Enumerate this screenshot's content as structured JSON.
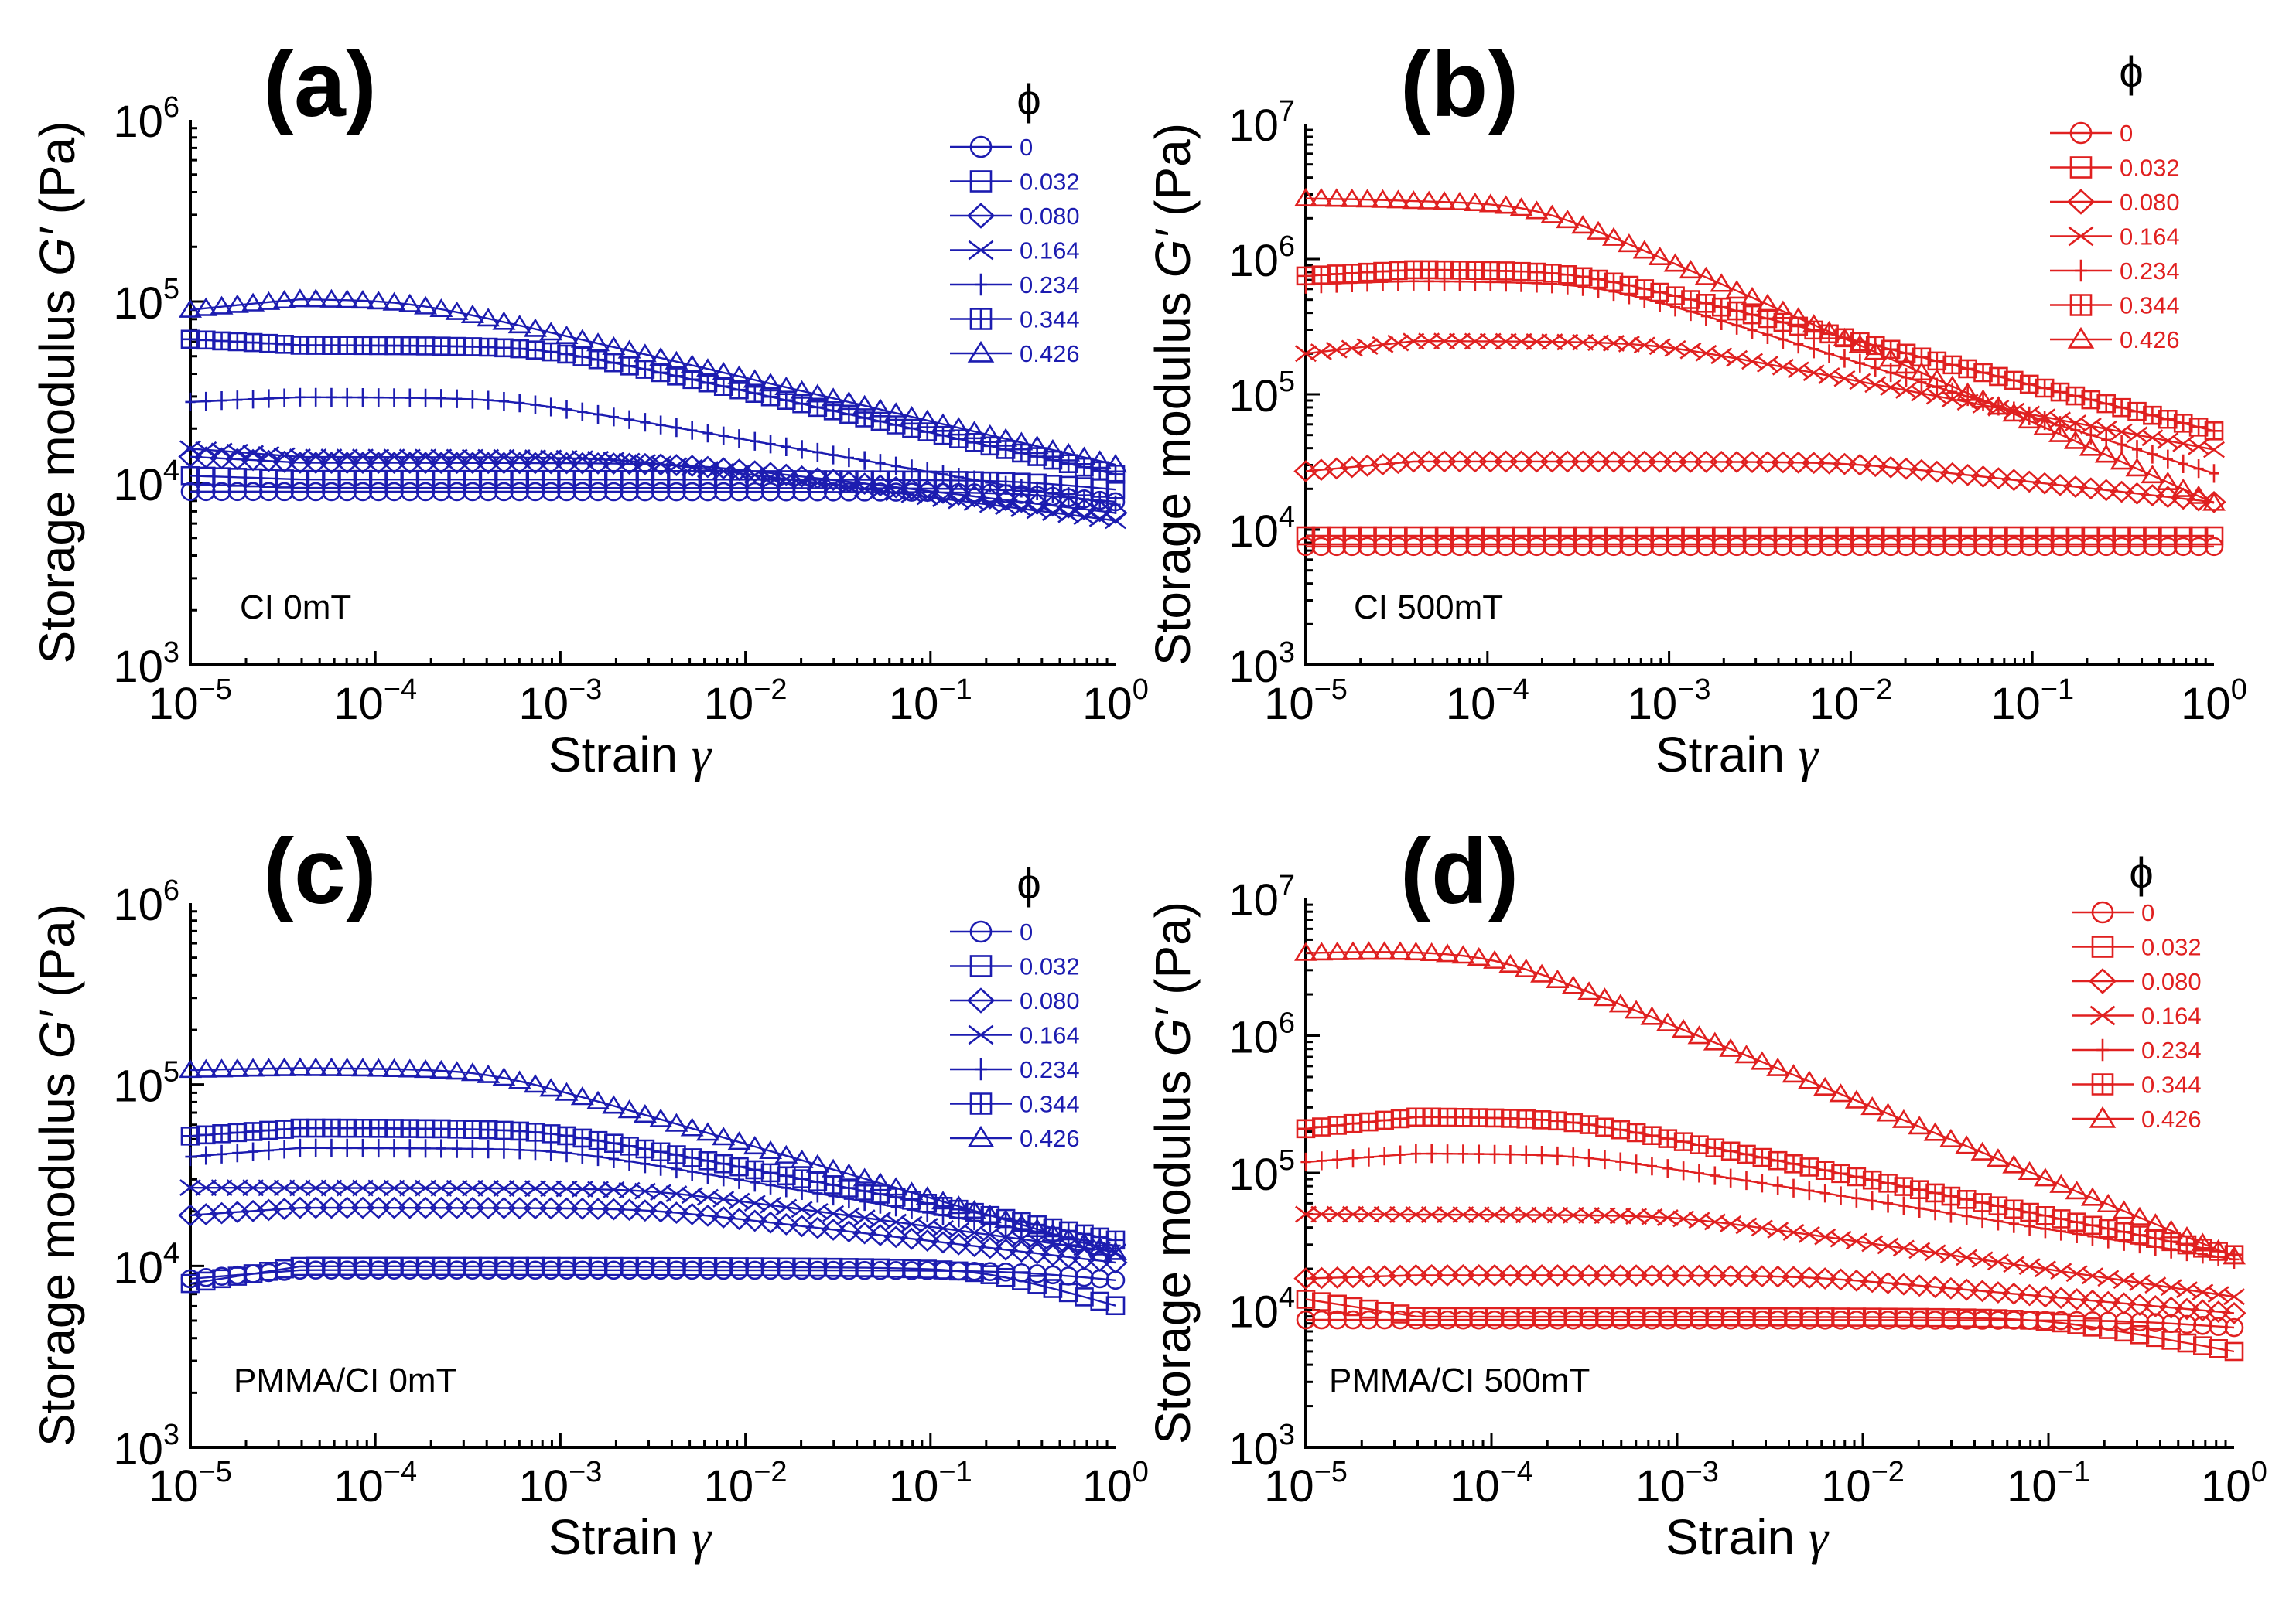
{
  "colors": {
    "blue": "#1c1cb0",
    "red": "#e02020"
  },
  "legend_title": "ϕ",
  "chart_data": [
    {
      "type": "line",
      "panel_label": "(a)",
      "annotation": "CI  0mT",
      "color": "#1c1cb0",
      "xlabel": "Strain",
      "xlabel_symbol": "γ",
      "ylabel": "Storage modulus",
      "ylabel_symbol": "G′",
      "ylabel_unit": "(Pa)",
      "xscale": "log",
      "yscale": "log",
      "xlim": [
        1e-05,
        1
      ],
      "ylim": [
        1000,
        1000000
      ],
      "xticks": [
        {
          "base": "10",
          "exp": "-5",
          "value": 1e-05
        },
        {
          "base": "10",
          "exp": "-4",
          "value": 0.0001
        },
        {
          "base": "10",
          "exp": "-3",
          "value": 0.001
        },
        {
          "base": "10",
          "exp": "-2",
          "value": 0.01
        },
        {
          "base": "10",
          "exp": "-1",
          "value": 0.1
        },
        {
          "base": "10",
          "exp": "0",
          "value": 1
        }
      ],
      "yticks": [
        {
          "base": "10",
          "exp": "3",
          "value": 1000
        },
        {
          "base": "10",
          "exp": "4",
          "value": 10000
        },
        {
          "base": "10",
          "exp": "5",
          "value": 100000
        },
        {
          "base": "10",
          "exp": "6",
          "value": 1000000
        }
      ],
      "legend_position": "top-right",
      "series": [
        {
          "name": "0",
          "marker": "circle",
          "plateau": 9000,
          "rise": 0,
          "transition": 0.3,
          "slope": 0.1,
          "start": 9000
        },
        {
          "name": "0.032",
          "marker": "square",
          "plateau": 10500,
          "rise": 0,
          "transition": 0.3,
          "slope": 0.1,
          "start": 11000
        },
        {
          "name": "0.080",
          "marker": "diamond",
          "plateau": 13000,
          "rise": 0,
          "transition": 0.005,
          "slope": 0.12,
          "start": 14000
        },
        {
          "name": "0.164",
          "marker": "x",
          "plateau": 14000,
          "rise": 0,
          "transition": 0.002,
          "slope": 0.13,
          "start": 15500
        },
        {
          "name": "0.234",
          "marker": "plus",
          "plateau": 30000,
          "rise": 0,
          "transition": 0.0005,
          "slope": 0.18,
          "start": 28000
        },
        {
          "name": "0.344",
          "marker": "boxplus",
          "plateau": 58000,
          "rise": 0,
          "transition": 0.0008,
          "slope": 0.23,
          "start": 62000
        },
        {
          "name": "0.426",
          "marker": "triangle",
          "plateau": 105000,
          "rise": 0,
          "transition": 0.00015,
          "slope": 0.24,
          "start": 90000
        }
      ]
    },
    {
      "type": "line",
      "panel_label": "(b)",
      "annotation": "CI  500mT",
      "color": "#e02020",
      "xlabel": "Strain",
      "xlabel_symbol": "γ",
      "ylabel": "Storage modulus",
      "ylabel_symbol": "G′",
      "ylabel_unit": "(Pa)",
      "xscale": "log",
      "yscale": "log",
      "xlim": [
        1e-05,
        1
      ],
      "ylim": [
        1000,
        10000000
      ],
      "xticks": [
        {
          "base": "10",
          "exp": "-5",
          "value": 1e-05
        },
        {
          "base": "10",
          "exp": "-4",
          "value": 0.0001
        },
        {
          "base": "10",
          "exp": "-3",
          "value": 0.001
        },
        {
          "base": "10",
          "exp": "-2",
          "value": 0.01
        },
        {
          "base": "10",
          "exp": "-1",
          "value": 0.1
        },
        {
          "base": "10",
          "exp": "0",
          "value": 1
        }
      ],
      "yticks": [
        {
          "base": "10",
          "exp": "3",
          "value": 1000
        },
        {
          "base": "10",
          "exp": "4",
          "value": 10000
        },
        {
          "base": "10",
          "exp": "5",
          "value": 100000
        },
        {
          "base": "10",
          "exp": "6",
          "value": 1000000
        },
        {
          "base": "10",
          "exp": "7",
          "value": 10000000
        }
      ],
      "legend_position": "top-right",
      "series": [
        {
          "name": "0",
          "marker": "circle",
          "plateau": 7500,
          "rise": 0,
          "transition": 1,
          "slope": 0,
          "start": 7500
        },
        {
          "name": "0.032",
          "marker": "square",
          "plateau": 9000,
          "rise": 0,
          "transition": 1,
          "slope": 0,
          "start": 9000
        },
        {
          "name": "0.080",
          "marker": "diamond",
          "plateau": 32000,
          "rise": 0,
          "transition": 0.01,
          "slope": 0.15,
          "start": 27000
        },
        {
          "name": "0.164",
          "marker": "x",
          "plateau": 250000,
          "rise": 0,
          "transition": 0.0008,
          "slope": 0.26,
          "start": 200000
        },
        {
          "name": "0.234",
          "marker": "plus",
          "plateau": 700000,
          "rise": 0,
          "transition": 0.0004,
          "slope": 0.42,
          "start": 650000
        },
        {
          "name": "0.344",
          "marker": "boxplus",
          "plateau": 850000,
          "rise": 0,
          "transition": 0.0003,
          "slope": 0.34,
          "start": 750000
        },
        {
          "name": "0.426",
          "marker": "triangle",
          "plateau": 2800000,
          "rise": 0,
          "transition": 0.00018,
          "slope": 0.6,
          "start": 2800000
        }
      ]
    },
    {
      "type": "line",
      "panel_label": "(c)",
      "annotation": "PMMA/CI  0mT",
      "color": "#1c1cb0",
      "xlabel": "Strain",
      "xlabel_symbol": "γ",
      "ylabel": "Storage modulus",
      "ylabel_symbol": "G′",
      "ylabel_unit": "(Pa)",
      "xscale": "log",
      "yscale": "log",
      "xlim": [
        1e-05,
        1
      ],
      "ylim": [
        1000,
        1000000
      ],
      "xticks": [
        {
          "base": "10",
          "exp": "-5",
          "value": 1e-05
        },
        {
          "base": "10",
          "exp": "-4",
          "value": 0.0001
        },
        {
          "base": "10",
          "exp": "-3",
          "value": 0.001
        },
        {
          "base": "10",
          "exp": "-2",
          "value": 0.01
        },
        {
          "base": "10",
          "exp": "-1",
          "value": 0.1
        },
        {
          "base": "10",
          "exp": "0",
          "value": 1
        }
      ],
      "yticks": [
        {
          "base": "10",
          "exp": "3",
          "value": 1000
        },
        {
          "base": "10",
          "exp": "4",
          "value": 10000
        },
        {
          "base": "10",
          "exp": "5",
          "value": 100000
        },
        {
          "base": "10",
          "exp": "6",
          "value": 1000000
        }
      ],
      "legend_position": "top-right",
      "series": [
        {
          "name": "0",
          "marker": "circle",
          "plateau": 9500,
          "rise": 0,
          "transition": 0.3,
          "slope": 0.1,
          "start": 8500
        },
        {
          "name": "0.032",
          "marker": "square",
          "plateau": 10000,
          "rise": 0,
          "transition": 0.2,
          "slope": 0.3,
          "start": 8000
        },
        {
          "name": "0.080",
          "marker": "diamond",
          "plateau": 21000,
          "rise": 0,
          "transition": 0.003,
          "slope": 0.12,
          "start": 19000
        },
        {
          "name": "0.164",
          "marker": "x",
          "plateau": 27000,
          "rise": 0,
          "transition": 0.003,
          "slope": 0.14,
          "start": 27000
        },
        {
          "name": "0.234",
          "marker": "plus",
          "plateau": 45000,
          "rise": 0,
          "transition": 0.001,
          "slope": 0.18,
          "start": 40000
        },
        {
          "name": "0.344",
          "marker": "boxplus",
          "plateau": 58000,
          "rise": 0,
          "transition": 0.0008,
          "slope": 0.2,
          "start": 52000
        },
        {
          "name": "0.426",
          "marker": "triangle",
          "plateau": 125000,
          "rise": 0,
          "transition": 0.0004,
          "slope": 0.3,
          "start": 120000
        }
      ]
    },
    {
      "type": "line",
      "panel_label": "(d)",
      "annotation": "PMMA/CI  500mT",
      "color": "#e02020",
      "xlabel": "Strain",
      "xlabel_symbol": "γ",
      "ylabel": "Storage modulus",
      "ylabel_symbol": "G′",
      "ylabel_unit": "(Pa)",
      "xscale": "log",
      "yscale": "log",
      "xlim": [
        1e-05,
        1
      ],
      "ylim": [
        1000,
        10000000
      ],
      "xticks": [
        {
          "base": "10",
          "exp": "-5",
          "value": 1e-05
        },
        {
          "base": "10",
          "exp": "-4",
          "value": 0.0001
        },
        {
          "base": "10",
          "exp": "-3",
          "value": 0.001
        },
        {
          "base": "10",
          "exp": "-2",
          "value": 0.01
        },
        {
          "base": "10",
          "exp": "-1",
          "value": 0.1
        },
        {
          "base": "10",
          "exp": "0",
          "value": 1
        }
      ],
      "yticks": [
        {
          "base": "10",
          "exp": "3",
          "value": 1000
        },
        {
          "base": "10",
          "exp": "4",
          "value": 10000
        },
        {
          "base": "10",
          "exp": "5",
          "value": 100000
        },
        {
          "base": "10",
          "exp": "6",
          "value": 1000000
        },
        {
          "base": "10",
          "exp": "7",
          "value": 10000000
        }
      ],
      "legend_position": "top-right",
      "series": [
        {
          "name": "0",
          "marker": "circle",
          "plateau": 8500,
          "rise": 0,
          "transition": 0.3,
          "slope": 0.1,
          "start": 8500
        },
        {
          "name": "0.032",
          "marker": "square",
          "plateau": 9000,
          "rise": 0,
          "transition": 0.1,
          "slope": 0.25,
          "start": 12000
        },
        {
          "name": "0.080",
          "marker": "diamond",
          "plateau": 18000,
          "rise": 0,
          "transition": 0.005,
          "slope": 0.12,
          "start": 17000
        },
        {
          "name": "0.164",
          "marker": "x",
          "plateau": 50000,
          "rise": 0,
          "transition": 0.001,
          "slope": 0.2,
          "start": 50000
        },
        {
          "name": "0.234",
          "marker": "plus",
          "plateau": 140000,
          "rise": 0,
          "transition": 0.0003,
          "slope": 0.22,
          "start": 120000
        },
        {
          "name": "0.344",
          "marker": "boxplus",
          "plateau": 260000,
          "rise": 0,
          "transition": 0.00025,
          "slope": 0.28,
          "start": 210000
        },
        {
          "name": "0.426",
          "marker": "triangle",
          "plateau": 4300000,
          "rise": 0,
          "transition": 0.0001,
          "slope": 0.56,
          "start": 4000000
        }
      ]
    }
  ]
}
